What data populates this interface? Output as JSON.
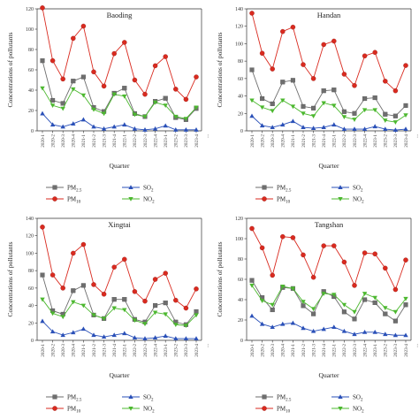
{
  "chart_data": [
    {
      "type": "line",
      "title": "Baoding",
      "xlabel": "Quarter",
      "ylabel": "Concentrations of pollutants",
      "ylim": [
        0,
        120
      ],
      "yticks": [
        0,
        20,
        40,
        60,
        80,
        100,
        120
      ],
      "categories": [
        "2020-1",
        "2020-2",
        "2020-3",
        "2020-4",
        "2021-1",
        "2021-2",
        "2021-3",
        "2021-4",
        "2022-1",
        "2022-2",
        "2022-3",
        "2022-4",
        "2023-1",
        "2023-2",
        "2023-3",
        "2023-4"
      ],
      "series": [
        {
          "name": "PM2.5",
          "values": [
            69,
            30,
            27,
            49,
            53,
            23,
            19,
            37,
            42,
            17,
            14,
            29,
            32,
            13,
            11,
            22
          ]
        },
        {
          "name": "PM10",
          "values": [
            121,
            69,
            51,
            91,
            103,
            58,
            44,
            76,
            87,
            50,
            36,
            64,
            73,
            41,
            31,
            53
          ]
        },
        {
          "name": "SO2",
          "values": [
            17,
            6,
            4,
            7,
            11,
            4,
            2,
            4,
            6,
            2,
            1,
            2,
            5,
            1,
            1,
            1
          ]
        },
        {
          "name": "NO2",
          "values": [
            42,
            25,
            22,
            41,
            35,
            21,
            17,
            36,
            34,
            16,
            14,
            28,
            25,
            14,
            12,
            23
          ]
        }
      ]
    },
    {
      "type": "line",
      "title": "Handan",
      "xlabel": "Quarter",
      "ylabel": "Concentrations of pollutants",
      "ylim": [
        0,
        140
      ],
      "yticks": [
        0,
        20,
        40,
        60,
        80,
        100,
        120,
        140
      ],
      "categories": [
        "2020-1",
        "2020-2",
        "2020-3",
        "2020-4",
        "2021-1",
        "2021-2",
        "2021-3",
        "2021-4",
        "2022-1",
        "2022-2",
        "2022-3",
        "2022-4",
        "2023-1",
        "2023-2",
        "2023-3",
        "2023-4"
      ],
      "series": [
        {
          "name": "PM2.5",
          "values": [
            70,
            37,
            31,
            56,
            58,
            28,
            26,
            46,
            47,
            22,
            20,
            37,
            38,
            19,
            17,
            29
          ]
        },
        {
          "name": "PM10",
          "values": [
            135,
            89,
            71,
            114,
            119,
            76,
            60,
            99,
            103,
            65,
            52,
            86,
            90,
            57,
            46,
            75
          ]
        },
        {
          "name": "SO2",
          "values": [
            17,
            6,
            4,
            7,
            11,
            4,
            3,
            4,
            7,
            2,
            2,
            2,
            5,
            2,
            1,
            2
          ]
        },
        {
          "name": "NO2",
          "values": [
            35,
            27,
            23,
            35,
            28,
            20,
            17,
            32,
            29,
            16,
            13,
            24,
            24,
            12,
            10,
            18
          ]
        }
      ]
    },
    {
      "type": "line",
      "title": "Xingtai",
      "xlabel": "Quarter",
      "ylabel": "Concentrations of pollutants",
      "ylim": [
        0,
        140
      ],
      "yticks": [
        0,
        20,
        40,
        60,
        80,
        100,
        120,
        140
      ],
      "categories": [
        "2020-1",
        "2020-2",
        "2020-3",
        "2020-4",
        "2021-1",
        "2021-2",
        "2021-3",
        "2021-4",
        "2022-1",
        "2022-2",
        "2022-3",
        "2022-4",
        "2023-1",
        "2023-2",
        "2023-3",
        "2023-4"
      ],
      "series": [
        {
          "name": "PM2.5",
          "values": [
            75,
            34,
            30,
            57,
            63,
            29,
            25,
            47,
            47,
            24,
            21,
            40,
            43,
            21,
            18,
            33
          ]
        },
        {
          "name": "PM10",
          "values": [
            130,
            75,
            60,
            100,
            110,
            64,
            53,
            84,
            93,
            56,
            45,
            70,
            77,
            46,
            37,
            59
          ]
        },
        {
          "name": "SO2",
          "values": [
            22,
            10,
            6,
            9,
            13,
            6,
            4,
            6,
            8,
            3,
            2,
            3,
            5,
            2,
            2,
            2
          ]
        },
        {
          "name": "NO2",
          "values": [
            47,
            31,
            27,
            44,
            40,
            29,
            25,
            37,
            35,
            23,
            19,
            32,
            30,
            18,
            17,
            29
          ]
        }
      ]
    },
    {
      "type": "line",
      "title": "Tangshan",
      "xlabel": "Quarter",
      "ylabel": "Concentrations of pollutants",
      "ylim": [
        0,
        120
      ],
      "yticks": [
        0,
        20,
        40,
        60,
        80,
        100,
        120
      ],
      "categories": [
        "2020-1",
        "2020-2",
        "2020-3",
        "2020-4",
        "2021-1",
        "2021-2",
        "2021-3",
        "2021-4",
        "2022-1",
        "2022-2",
        "2022-3",
        "2022-4",
        "2023-1",
        "2023-2",
        "2023-3",
        "2023-4"
      ],
      "series": [
        {
          "name": "PM2.5",
          "values": [
            59,
            42,
            30,
            52,
            51,
            34,
            26,
            48,
            43,
            28,
            21,
            40,
            37,
            26,
            19,
            35
          ]
        },
        {
          "name": "PM10",
          "values": [
            110,
            91,
            64,
            102,
            101,
            84,
            62,
            93,
            93,
            77,
            54,
            86,
            85,
            71,
            50,
            79
          ]
        },
        {
          "name": "SO2",
          "values": [
            24,
            16,
            13,
            16,
            17,
            12,
            9,
            11,
            13,
            9,
            6,
            8,
            8,
            6,
            5,
            5
          ]
        },
        {
          "name": "NO2",
          "values": [
            54,
            39,
            35,
            53,
            51,
            38,
            31,
            46,
            45,
            35,
            28,
            46,
            42,
            32,
            28,
            41
          ]
        }
      ]
    }
  ],
  "legend": [
    {
      "base": "PM",
      "sub": "2.5",
      "series_index": 0
    },
    {
      "base": "PM",
      "sub": "10",
      "series_index": 1
    },
    {
      "base": "SO",
      "sub": "2",
      "series_index": 2
    },
    {
      "base": "NO",
      "sub": "2",
      "series_index": 3
    }
  ],
  "style": {
    "series_colors": [
      "#6e6e6e",
      "#d92a1f",
      "#2a50b8",
      "#4cb82f"
    ],
    "series_markers": [
      "square",
      "circle",
      "triangle-up",
      "triangle-down"
    ]
  },
  "trailing_tick": "..."
}
